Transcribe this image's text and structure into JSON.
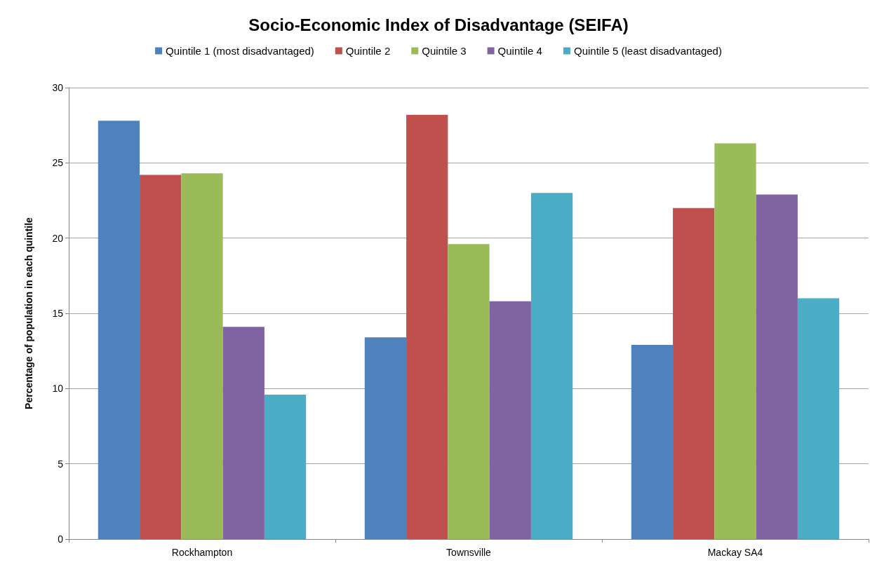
{
  "chart_data": {
    "type": "bar",
    "title": "Socio-Economic Index of Disadvantage (SEIFA)",
    "ylabel": "Percentage of population in each quintile",
    "categories": [
      "Rockhampton",
      "Townsville",
      "Mackay SA4"
    ],
    "series": [
      {
        "name": "Quintile 1 (most disadvantaged)",
        "color": "#4f81bd",
        "values": [
          27.8,
          13.4,
          12.9
        ]
      },
      {
        "name": "Quintile 2",
        "color": "#c0504d",
        "values": [
          24.2,
          28.2,
          22.0
        ]
      },
      {
        "name": "Quintile 3",
        "color": "#9bbb59",
        "values": [
          24.3,
          19.6,
          26.3
        ]
      },
      {
        "name": "Quintile 4",
        "color": "#8064a2",
        "values": [
          14.1,
          15.8,
          22.9
        ]
      },
      {
        "name": "Quintile 5 (least disadvantaged)",
        "color": "#4bacc6",
        "values": [
          9.6,
          23.0,
          16.0
        ]
      }
    ],
    "ylim": [
      0,
      30
    ],
    "yticks": [
      0,
      5,
      10,
      15,
      20,
      25,
      30
    ],
    "grid": "y",
    "legend": "top"
  }
}
